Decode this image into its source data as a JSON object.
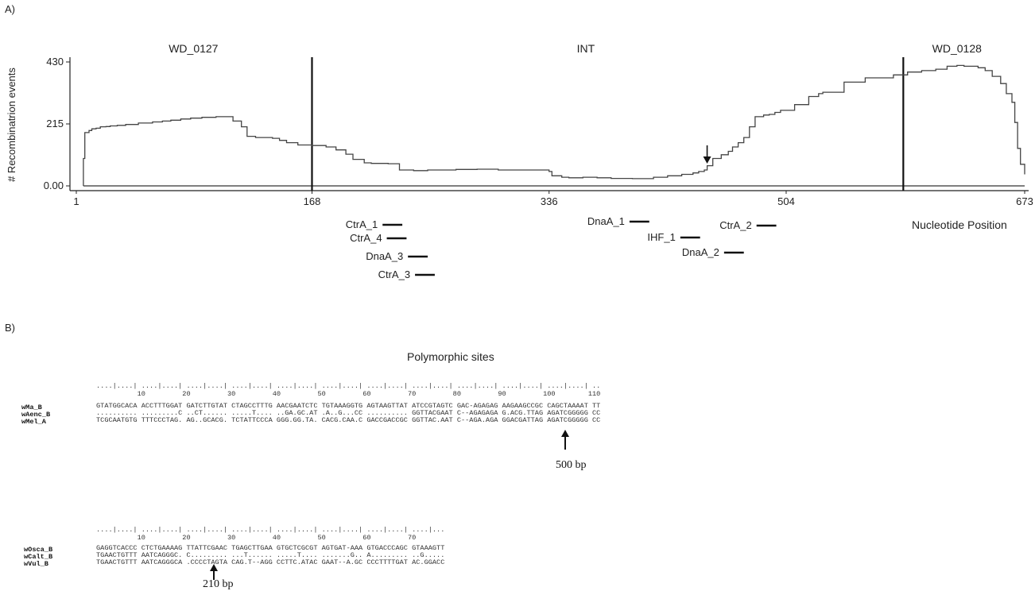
{
  "panel_a": {
    "letter": "A)",
    "chart_data": {
      "type": "line",
      "ylabel": "# Recombinatrion events",
      "xlabel": "Nucleotide Position",
      "y_ticks": [
        "430",
        "215",
        "0.00"
      ],
      "y_tick_values": [
        430,
        215,
        0
      ],
      "x_ticks": [
        "1",
        "168",
        "336",
        "504",
        "673"
      ],
      "x_tick_values": [
        1,
        168,
        336,
        504,
        673
      ],
      "xlim": [
        1,
        673
      ],
      "ylim": [
        0,
        430
      ],
      "region_labels": [
        {
          "text": "WD_0127",
          "x": 84
        },
        {
          "text": "INT",
          "x": 362
        },
        {
          "text": "WD_0128",
          "x": 625
        }
      ],
      "boundaries": [
        168,
        587
      ],
      "arrow_marker": {
        "x": 448
      },
      "series": [
        {
          "x": [
            6,
            7,
            10,
            12,
            15,
            18,
            22,
            25,
            30,
            36,
            45,
            55,
            62,
            68,
            75,
            82,
            90,
            100,
            110,
            112,
            118,
            122,
            128,
            140,
            145,
            150,
            158,
            168,
            178,
            185,
            192,
            197,
            205,
            210,
            222,
            230,
            240,
            250,
            270,
            285,
            300,
            320,
            336,
            338,
            345,
            350,
            360,
            370,
            380,
            395,
            410,
            420,
            430,
            438,
            442,
            446,
            448,
            452,
            458,
            463,
            466,
            470,
            474,
            478,
            482,
            488,
            492,
            496,
            500,
            510,
            520,
            527,
            530,
            545,
            560,
            580,
            590,
            600,
            610,
            618,
            625,
            630,
            640,
            645,
            650,
            656,
            660,
            664,
            666,
            668,
            670,
            673
          ],
          "y": [
            95,
            185,
            192,
            198,
            200,
            205,
            206,
            208,
            210,
            213,
            218,
            222,
            225,
            228,
            232,
            235,
            238,
            240,
            240,
            225,
            205,
            172,
            168,
            165,
            158,
            150,
            142,
            140,
            135,
            125,
            110,
            92,
            80,
            78,
            77,
            55,
            53,
            55,
            57,
            58,
            55,
            55,
            50,
            35,
            30,
            28,
            30,
            28,
            26,
            25,
            30,
            35,
            40,
            45,
            50,
            55,
            70,
            95,
            108,
            120,
            135,
            150,
            168,
            205,
            240,
            246,
            248,
            255,
            262,
            282,
            310,
            320,
            325,
            360,
            375,
            385,
            395,
            400,
            405,
            415,
            418,
            415,
            410,
            400,
            380,
            355,
            320,
            290,
            220,
            130,
            75,
            40
          ]
        }
      ],
      "motifs": [
        {
          "label": "CtrA_1",
          "start": 218,
          "end": 232
        },
        {
          "label": "CtrA_4",
          "start": 221,
          "end": 235
        },
        {
          "label": "DnaA_3",
          "start": 236,
          "end": 250
        },
        {
          "label": "CtrA_3",
          "start": 241,
          "end": 255
        },
        {
          "label": "DnaA_1",
          "start": 393,
          "end": 407
        },
        {
          "label": "IHF_1",
          "start": 429,
          "end": 443
        },
        {
          "label": "DnaA_2",
          "start": 460,
          "end": 474
        },
        {
          "label": "CtrA_2",
          "start": 483,
          "end": 497
        }
      ]
    }
  },
  "panel_b": {
    "letter": "B)",
    "title": "Polymorphic sites",
    "block1": {
      "ruler": "....|....| ....|....| ....|....| ....|....| ....|....| ....|....| ....|....| ....|....| ....|....| ....|....| ....|....| ..",
      "numbers": "          10         20         30         40         50         60         70         80         90         100        110",
      "names": [
        "wMa_B",
        "wAenc_B",
        "wMel_A"
      ],
      "sequences": [
        "GTATGGCACA ACCTTTGGAT GATCTTGTAT CTAGCCTTTG AACGAATCTC TGTAAAGGTG AGTAAGTTAT ATCCGTAGTC GAC-AGAGAG AAGAAGCCGC CAGCTAAAAT TT",
        ".......... .........C ..CT...... .....T.... ..GA.GC.AT .A..G...CC .......... GGTTACGAAT C--AGAGAGA G.ACG.TTAG AGATCGGGGG CC",
        "TCGCAATGTG TTTCCCTAG. AG..GCACG. TCTATTCCCA GGG.GG.TA. CACG.CAA.C GACCGACCGC GGTTAC.AAT C--AGA.AGA GGACGATTAG AGATCGGGGG CC"
      ],
      "arrow_label": "500 bp"
    },
    "block2": {
      "ruler": "....|....| ....|....| ....|....| ....|....| ....|....| ....|....| ....|....| ....|...",
      "numbers": "          10         20         30         40         50         60         70",
      "names": [
        "wOsca_B",
        "wCalt_B",
        "wVul_B"
      ],
      "sequences": [
        "GAGGTCACCC CTCTGAAAAG TTATTCGAAC TGAGCTTGAA GTGCTCGCGT AGTGAT-AAA GTGACCCAGC GTAAAGTT",
        "TGAACTGTTT AATCAGGGC. C......... ...T...... .....T.... .......G.. A......... ..G.....",
        "TGAACTGTTT AATCAGGGCA .CCCCTAGTA CAG.T--AGG CCTTC.ATAC GAAT--A.GC CCCTTTTGAT AC.GGACC"
      ],
      "arrow_label": "210 bp"
    }
  }
}
